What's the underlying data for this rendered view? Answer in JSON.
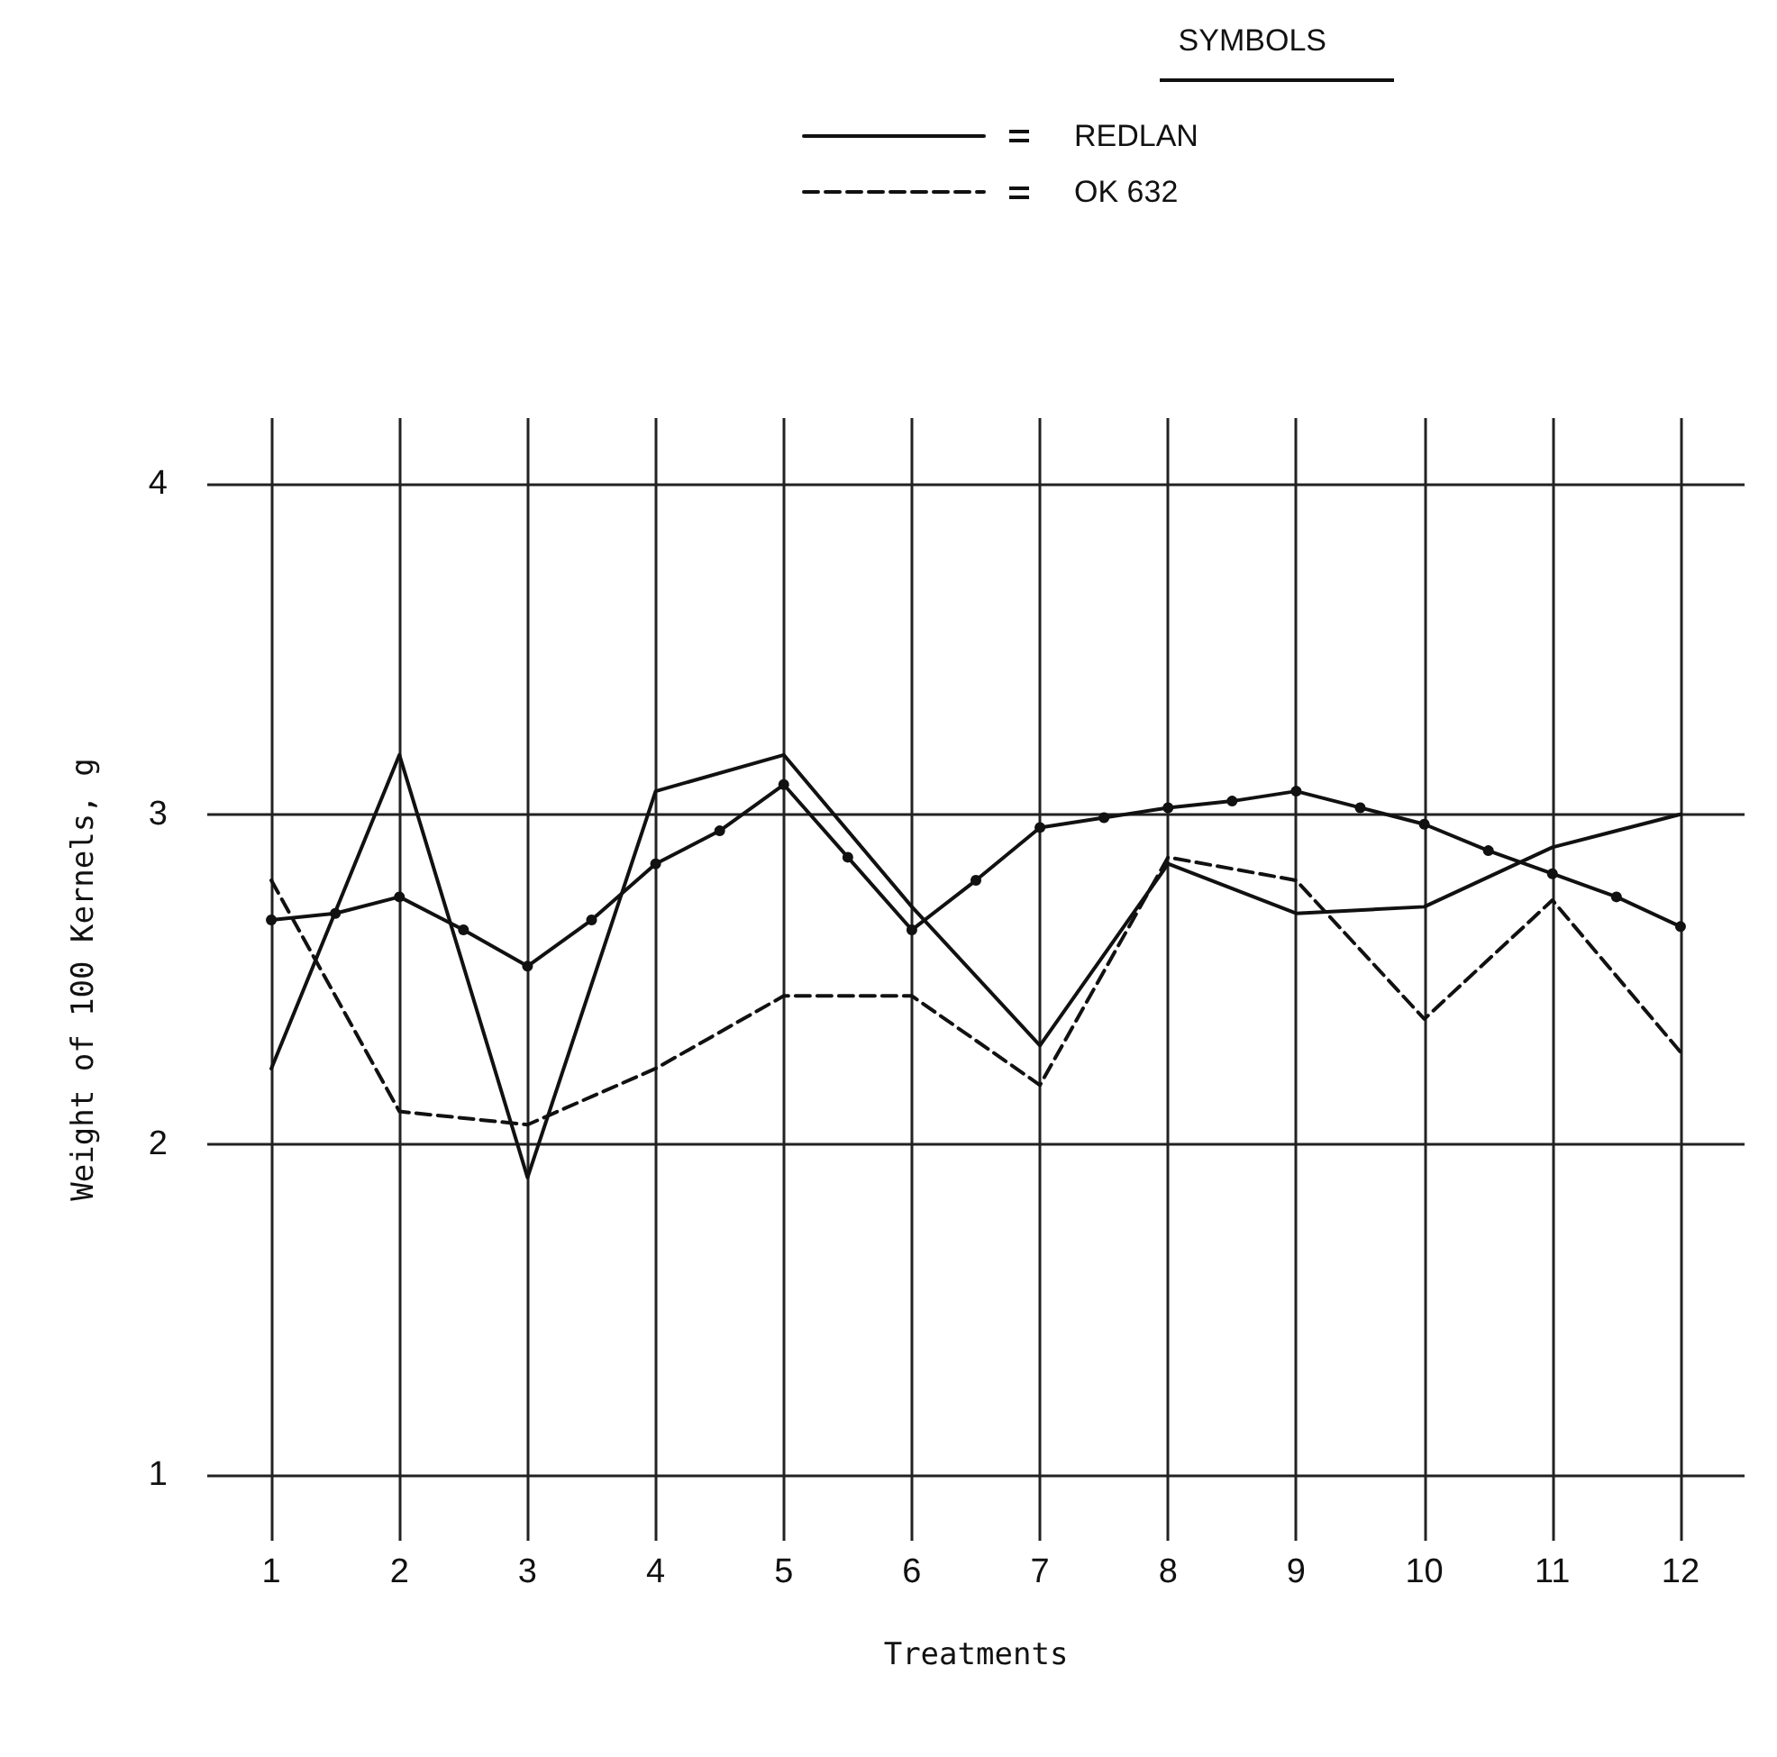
{
  "chart_data": {
    "type": "line",
    "xlabel": "Treatments",
    "ylabel": "Weight of 100 Kernels, g",
    "legend_title": "SYMBOLS",
    "xlim": [
      0.5,
      12.5
    ],
    "xticks": [
      1,
      2,
      3,
      4,
      5,
      6,
      7,
      8,
      9,
      10,
      11,
      12
    ],
    "ylim": [
      0.8,
      4.2
    ],
    "yticks": [
      1,
      2,
      3,
      4
    ],
    "grid": true,
    "legend": "top right",
    "series": [
      {
        "name": "REDLAN",
        "color": "#111111",
        "line_style": "solid",
        "marker": "none",
        "x": [
          1,
          2,
          3,
          4,
          5,
          6,
          7,
          8,
          9,
          10,
          11,
          12
        ],
        "values": [
          2.23,
          3.18,
          1.9,
          3.07,
          3.18,
          2.72,
          2.3,
          2.85,
          2.7,
          2.72,
          2.9,
          3.0
        ]
      },
      {
        "name": "OK 632",
        "color": "#111111",
        "line_style": "dashed",
        "marker": "none",
        "x": [
          1,
          2,
          3,
          4,
          5,
          6,
          7,
          8,
          9,
          10,
          11,
          12
        ],
        "values": [
          2.8,
          2.1,
          2.06,
          2.23,
          2.45,
          2.45,
          2.18,
          2.87,
          2.8,
          2.38,
          2.74,
          2.28
        ]
      },
      {
        "color": "#111111",
        "line_style": "solid",
        "marker": "circle",
        "x": [
          1,
          1.5,
          2,
          2.5,
          3,
          3.5,
          4,
          4.5,
          5,
          5.5,
          6,
          6.5,
          7,
          7.5,
          8,
          8.5,
          9,
          9.5,
          10,
          10.5,
          11,
          11.5,
          12
        ],
        "values": [
          2.68,
          2.7,
          2.75,
          2.65,
          2.54,
          2.68,
          2.85,
          2.95,
          3.09,
          2.87,
          2.65,
          2.8,
          2.96,
          2.99,
          3.02,
          3.04,
          3.07,
          3.02,
          2.97,
          2.89,
          2.82,
          2.75,
          2.66
        ]
      }
    ]
  }
}
